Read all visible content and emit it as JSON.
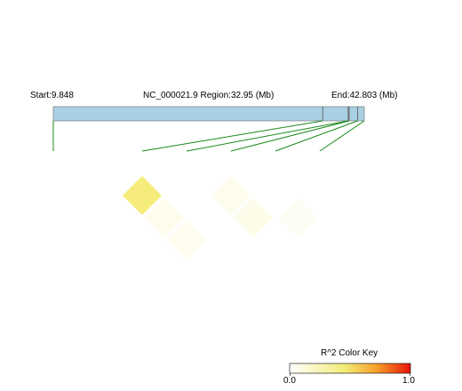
{
  "chart_data": {
    "type": "heatmap",
    "header": {
      "start_label": "Start:9.848",
      "region_label": "NC_000021.9 Region:32.95 (Mb)",
      "end_label": "End:42.803 (Mb)"
    },
    "region": {
      "start_mb": 9.848,
      "end_mb": 42.803
    },
    "snp_positions_mb": [
      9.848,
      38.4,
      41.1,
      41.2,
      42.1,
      42.803
    ],
    "ld_cells": [
      {
        "i": 1,
        "j": 3,
        "r2": 0.05
      },
      {
        "i": 1,
        "j": 2,
        "r2": 0.35
      },
      {
        "i": 1,
        "j": 4,
        "r2": 0.04
      },
      {
        "i": 3,
        "j": 4,
        "r2": 0.05
      },
      {
        "i": 3,
        "j": 5,
        "r2": 0.06
      },
      {
        "i": 4,
        "j": 6,
        "r2": 0.03
      }
    ],
    "color_key": {
      "title": "R^2 Color Key",
      "min_label": "0.0",
      "max_label": "1.0",
      "range": [
        0,
        1
      ],
      "colors": {
        "low": "#ffffff",
        "mid": "#f0e442",
        "high": "#e8140a"
      }
    },
    "colors": {
      "bar_fill": "#a9d0e3",
      "bar_stroke": "#6b6b6b",
      "connector": "#1b8a1b"
    }
  }
}
